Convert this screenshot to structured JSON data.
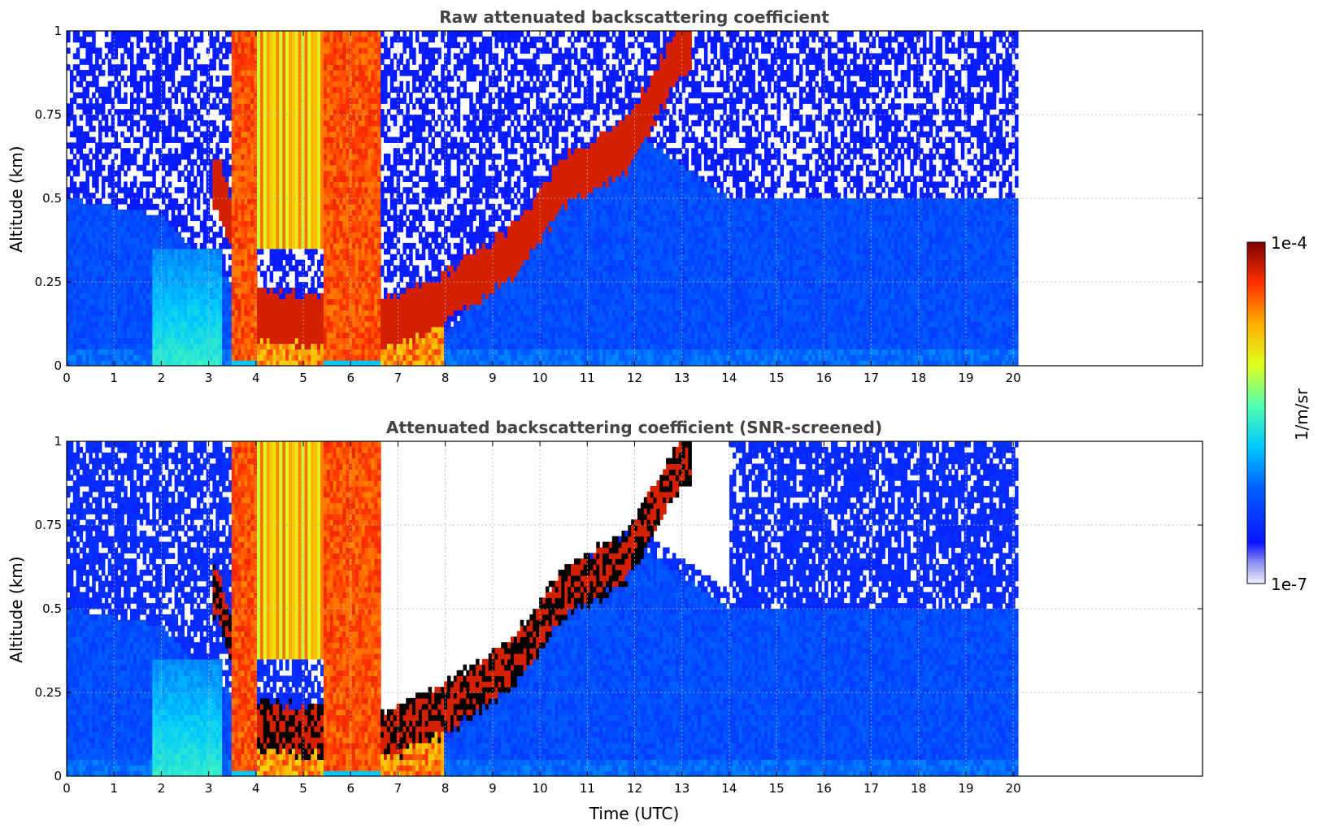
{
  "chart_data": [
    {
      "type": "heatmap",
      "title": "Raw attenuated backscattering coefficient",
      "xlabel": "",
      "ylabel": "Altitude (km)",
      "xlim": [
        0,
        24
      ],
      "ylim": [
        0,
        1
      ],
      "data_x_extent": [
        0,
        20.1
      ],
      "xticks": [
        0,
        1,
        2,
        3,
        4,
        5,
        6,
        7,
        8,
        9,
        10,
        11,
        12,
        13,
        14,
        15,
        16,
        17,
        18,
        19,
        20
      ],
      "yticks": [
        0,
        0.25,
        0.5,
        0.75,
        1
      ],
      "ytick_labels": [
        "0",
        "0.25",
        "0.5",
        "0.75",
        "1"
      ],
      "grid": true,
      "screening": "raw",
      "features": {
        "aerosol_layer_top_km": [
          [
            0,
            0.5
          ],
          [
            2,
            0.45
          ],
          [
            3,
            0.3
          ],
          [
            4,
            0.2
          ],
          [
            6,
            0.15
          ],
          [
            8,
            0.1
          ],
          [
            9,
            0.25
          ],
          [
            10,
            0.45
          ],
          [
            11,
            0.6
          ],
          [
            12,
            0.7
          ],
          [
            13,
            0.6
          ],
          [
            14,
            0.5
          ],
          [
            20,
            0.5
          ]
        ],
        "dense_fog_hours": [
          [
            3.5,
            4.0
          ],
          [
            5.4,
            6.6
          ]
        ],
        "rising_layer": [
          [
            3.2,
            0.55
          ],
          [
            4,
            0.15
          ],
          [
            6.7,
            0.12
          ],
          [
            8,
            0.2
          ],
          [
            9.5,
            0.35
          ],
          [
            10.5,
            0.55
          ],
          [
            11.8,
            0.65
          ],
          [
            13,
            0.95
          ]
        ]
      }
    },
    {
      "type": "heatmap",
      "title": "Attenuated backscattering coefficient (SNR-screened)",
      "xlabel": "Time (UTC)",
      "ylabel": "Altitude (km)",
      "xlim": [
        0,
        24
      ],
      "ylim": [
        0,
        1
      ],
      "data_x_extent": [
        0,
        20.1
      ],
      "xticks": [
        0,
        1,
        2,
        3,
        4,
        5,
        6,
        7,
        8,
        9,
        10,
        11,
        12,
        13,
        14,
        15,
        16,
        17,
        18,
        19,
        20
      ],
      "yticks": [
        0,
        0.25,
        0.5,
        0.75,
        1
      ],
      "ytick_labels": [
        "0",
        "0.25",
        "0.5",
        "0.75",
        "1"
      ],
      "grid": true,
      "screening": "snr",
      "features": {
        "aerosol_layer_top_km": [
          [
            0,
            0.5
          ],
          [
            2,
            0.45
          ],
          [
            3,
            0.3
          ],
          [
            4,
            0.2
          ],
          [
            6,
            0.15
          ],
          [
            8,
            0.1
          ],
          [
            9,
            0.25
          ],
          [
            10,
            0.45
          ],
          [
            11,
            0.6
          ],
          [
            12,
            0.7
          ],
          [
            13,
            0.6
          ],
          [
            14,
            0.5
          ],
          [
            20,
            0.5
          ]
        ],
        "dense_fog_hours": [
          [
            3.5,
            4.0
          ],
          [
            5.4,
            6.6
          ]
        ],
        "rising_layer": [
          [
            3.2,
            0.55
          ],
          [
            4,
            0.15
          ],
          [
            6.7,
            0.12
          ],
          [
            8,
            0.2
          ],
          [
            9.5,
            0.35
          ],
          [
            10.5,
            0.55
          ],
          [
            11.8,
            0.65
          ],
          [
            13,
            0.95
          ]
        ]
      }
    }
  ],
  "colorbar": {
    "label": "1/m/sr",
    "min_label": "1e-7",
    "max_label": "1e-4",
    "colormap": "jet",
    "scale": "log"
  }
}
